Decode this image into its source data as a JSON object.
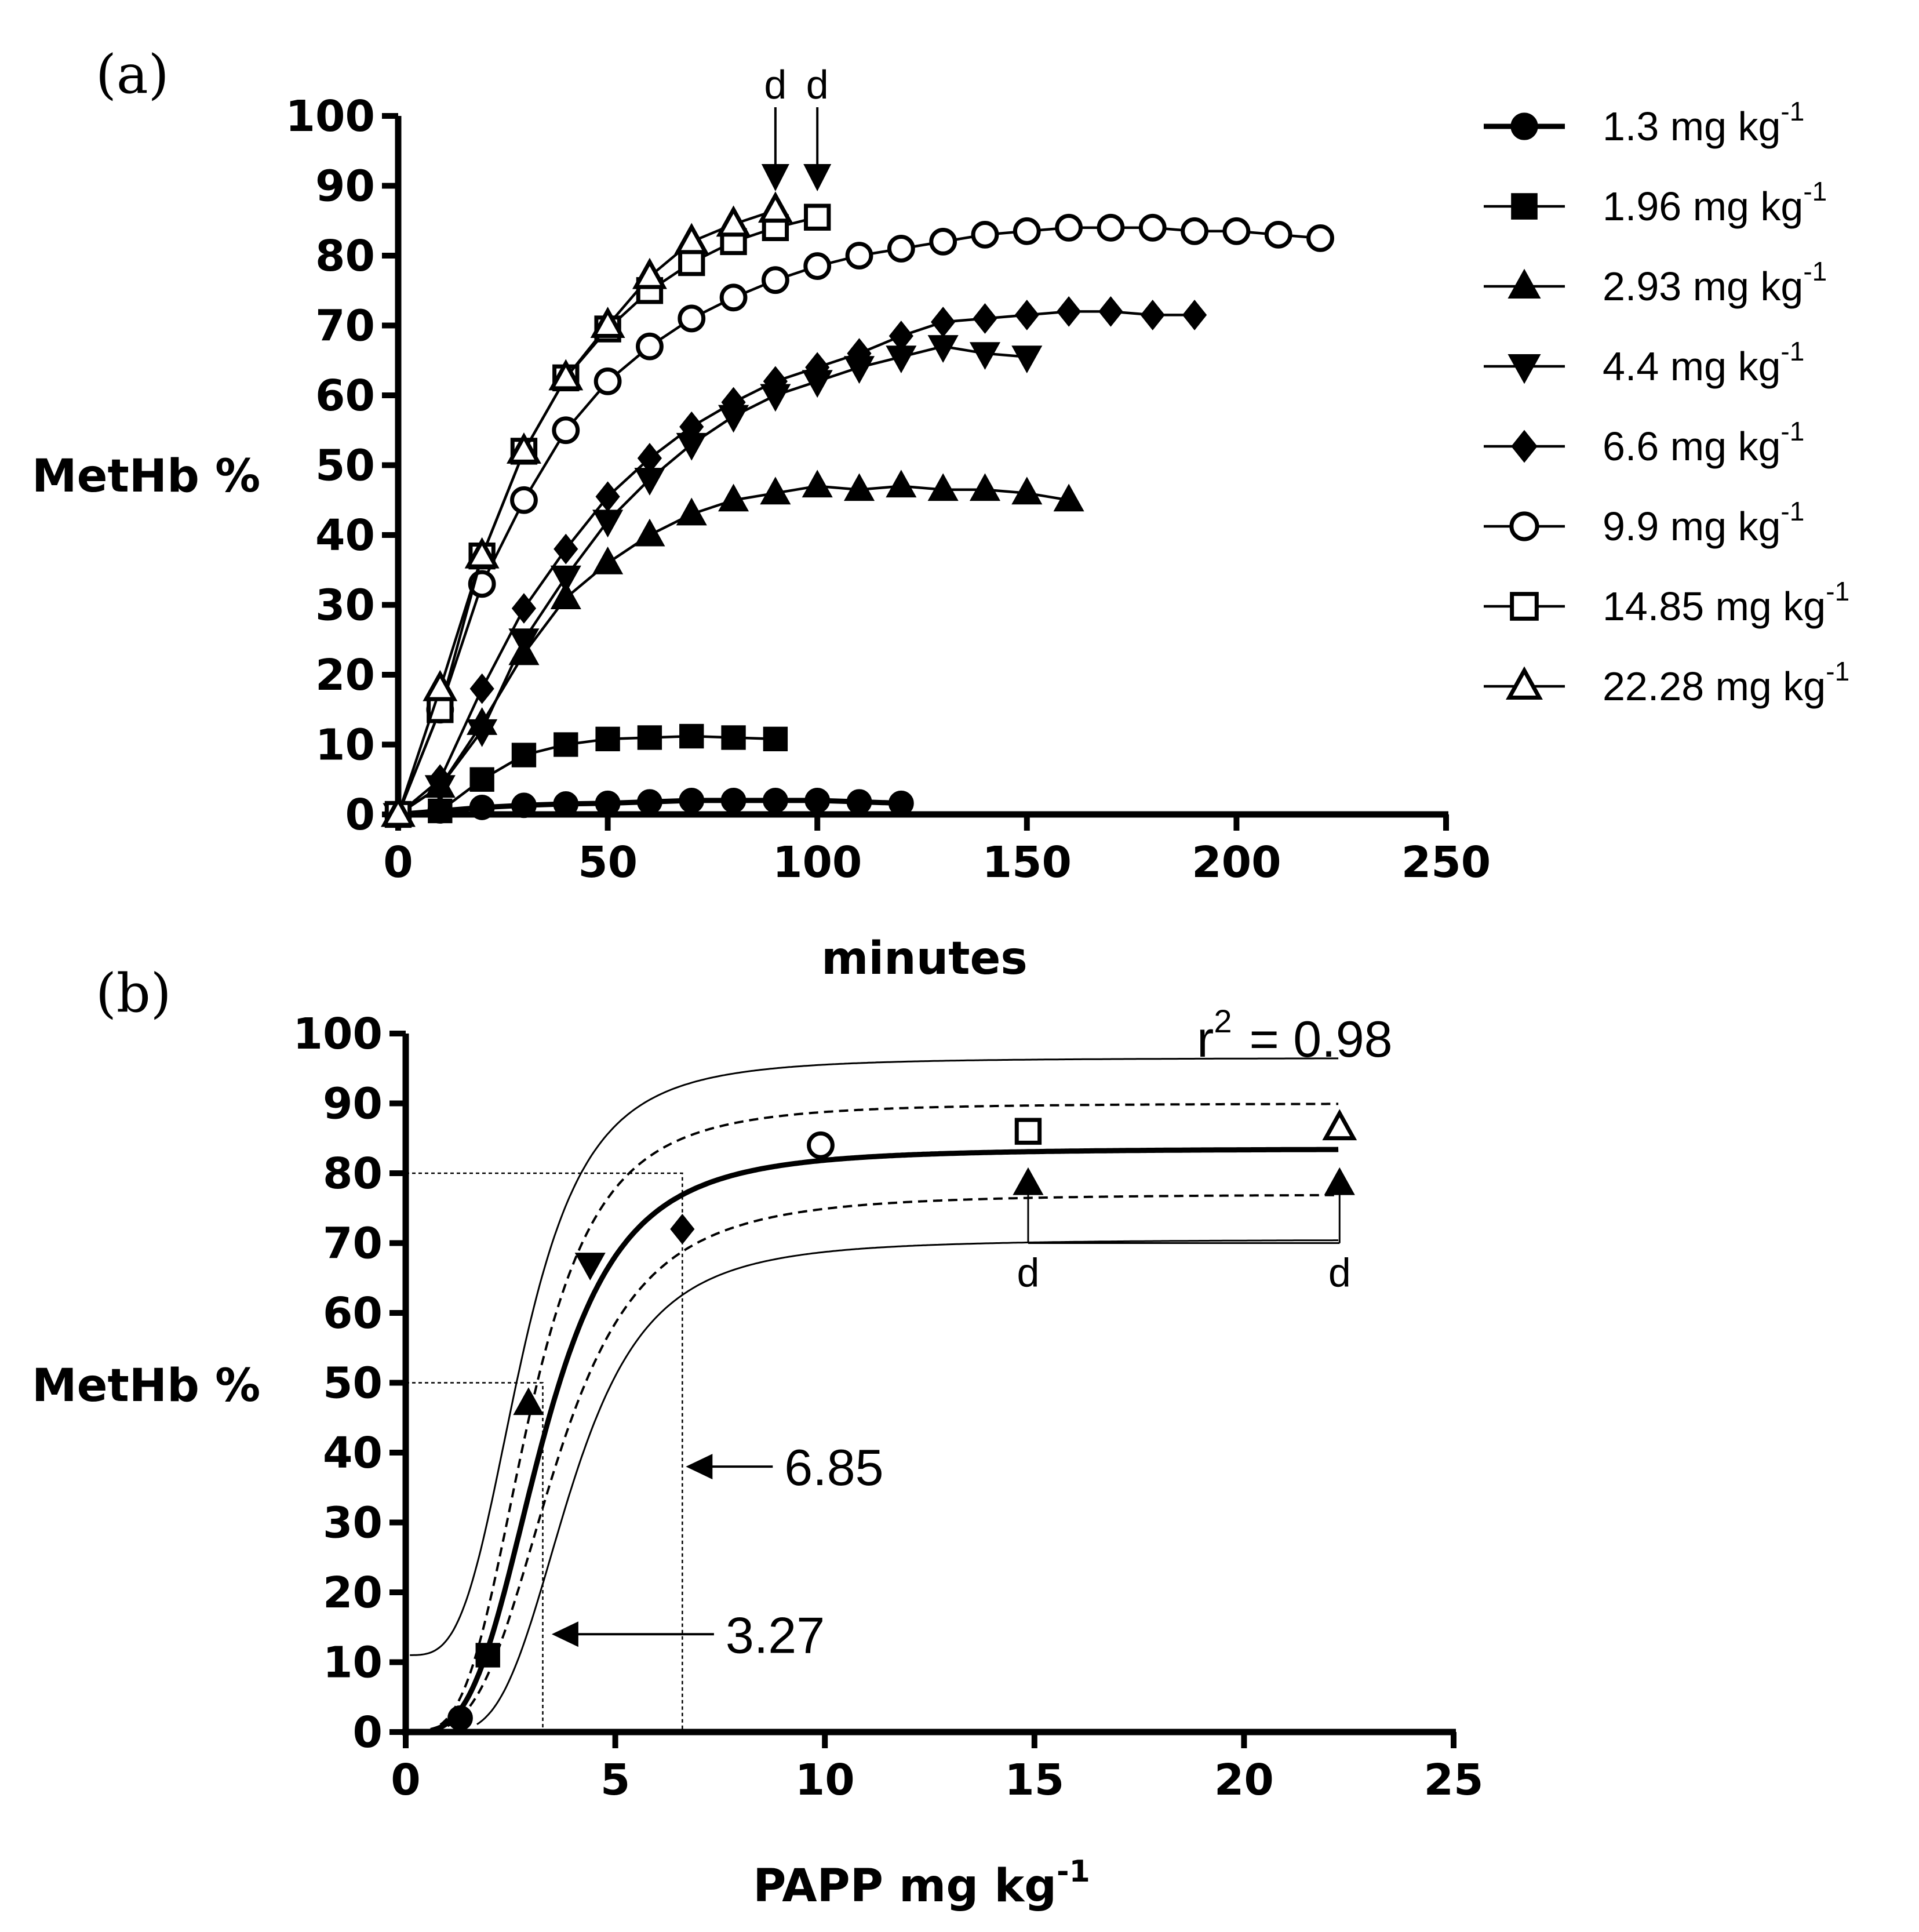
{
  "chart_data": [
    {
      "panel": "(a)",
      "type": "line",
      "xlabel": "minutes",
      "ylabel": "MetHb %",
      "xlim": [
        0,
        250
      ],
      "ylim": [
        0,
        100
      ],
      "xticks": [
        0,
        50,
        100,
        150,
        200,
        250
      ],
      "yticks": [
        0,
        10,
        20,
        30,
        40,
        50,
        60,
        70,
        80,
        90,
        100
      ],
      "legend_position": "right",
      "series": [
        {
          "name": "1.3 mg kg",
          "unit_sup": "-1",
          "marker": "circle",
          "fill": "filled",
          "line": "thick",
          "x": [
            0,
            10,
            20,
            30,
            40,
            50,
            60,
            70,
            80,
            90,
            100,
            110,
            120
          ],
          "y": [
            0,
            0.5,
            1,
            1.3,
            1.5,
            1.6,
            1.8,
            2,
            2,
            2,
            2,
            1.8,
            1.6
          ]
        },
        {
          "name": "1.96 mg kg",
          "unit_sup": "-1",
          "marker": "square",
          "fill": "filled",
          "line": "thin",
          "x": [
            0,
            10,
            20,
            30,
            40,
            50,
            60,
            70,
            80,
            90
          ],
          "y": [
            0,
            0.5,
            5,
            8.5,
            10,
            10.8,
            11,
            11.2,
            11,
            10.8
          ]
        },
        {
          "name": "2.93 mg kg",
          "unit_sup": "-1",
          "marker": "triangle-up",
          "fill": "filled",
          "line": "thin",
          "x": [
            0,
            10,
            20,
            30,
            40,
            50,
            60,
            70,
            80,
            90,
            100,
            110,
            120,
            130,
            140,
            150,
            160
          ],
          "y": [
            0,
            4,
            13,
            23,
            31,
            36,
            40,
            43,
            45,
            46,
            47,
            46.5,
            47,
            46.5,
            46.5,
            46,
            45
          ]
        },
        {
          "name": "4.4 mg kg",
          "unit_sup": "-1",
          "marker": "triangle-down",
          "fill": "filled",
          "line": "thin",
          "x": [
            0,
            10,
            20,
            30,
            40,
            50,
            60,
            70,
            80,
            90,
            100,
            110,
            120,
            130,
            140,
            150
          ],
          "y": [
            0,
            4,
            12,
            25,
            34,
            42,
            48,
            53,
            57,
            60,
            62,
            64,
            65.5,
            67,
            66,
            65.5
          ]
        },
        {
          "name": "6.6 mg kg",
          "unit_sup": "-1",
          "marker": "diamond",
          "fill": "filled",
          "line": "thin",
          "x": [
            0,
            10,
            20,
            30,
            40,
            50,
            60,
            70,
            80,
            90,
            100,
            110,
            120,
            130,
            140,
            150,
            160,
            170,
            180,
            190
          ],
          "y": [
            0,
            5,
            18,
            29.5,
            38,
            45.5,
            51,
            55.5,
            59,
            62,
            64,
            66,
            68.5,
            70.5,
            71,
            71.5,
            72,
            72,
            71.5,
            71.5
          ]
        },
        {
          "name": "9.9 mg kg",
          "unit_sup": "-1",
          "marker": "circle",
          "fill": "open",
          "line": "thin",
          "x": [
            0,
            10,
            20,
            30,
            40,
            50,
            60,
            70,
            80,
            90,
            100,
            110,
            120,
            130,
            140,
            150,
            160,
            170,
            180,
            190,
            200,
            210,
            220
          ],
          "y": [
            0,
            15,
            33,
            45,
            55,
            62,
            67,
            71,
            74,
            76.5,
            78.5,
            80,
            81,
            82,
            83,
            83.5,
            84,
            84,
            84,
            83.5,
            83.5,
            83,
            82.5
          ]
        },
        {
          "name": "14.85 mg kg",
          "unit_sup": "-1",
          "marker": "square",
          "fill": "open",
          "line": "thin",
          "x": [
            0,
            10,
            20,
            30,
            40,
            50,
            60,
            70,
            80,
            90,
            100
          ],
          "y": [
            0,
            15,
            37,
            52,
            62.5,
            69.5,
            75,
            79,
            82,
            84,
            85.5
          ]
        },
        {
          "name": "22.28 mg kg",
          "unit_sup": "-1",
          "marker": "triangle-up",
          "fill": "open",
          "line": "thin",
          "x": [
            0,
            10,
            20,
            30,
            40,
            50,
            60,
            70,
            80,
            90
          ],
          "y": [
            0,
            18,
            37,
            52,
            62.5,
            70,
            77,
            82,
            84.5,
            86.5
          ]
        }
      ],
      "annotations": [
        {
          "text": "d",
          "x": 90,
          "y": 90,
          "type": "arrow-down"
        },
        {
          "text": "d",
          "x": 100,
          "y": 90,
          "type": "arrow-down"
        }
      ]
    },
    {
      "panel": "(b)",
      "type": "scatter",
      "xlabel": "PAPP mg kg",
      "xlabel_sup": "-1",
      "ylabel": "MetHb %",
      "xlim": [
        0,
        25
      ],
      "ylim": [
        0,
        100
      ],
      "xticks": [
        0,
        5,
        10,
        15,
        20,
        25
      ],
      "yticks": [
        0,
        10,
        20,
        30,
        40,
        50,
        60,
        70,
        80,
        90,
        100
      ],
      "r2_text": "r",
      "r2_sup": "2",
      "r2_value": "= 0.98",
      "points": [
        {
          "x": 1.3,
          "y": 2,
          "marker": "circle",
          "fill": "filled"
        },
        {
          "x": 1.96,
          "y": 11,
          "marker": "square",
          "fill": "filled"
        },
        {
          "x": 2.93,
          "y": 47,
          "marker": "triangle-up",
          "fill": "filled"
        },
        {
          "x": 4.4,
          "y": 67,
          "marker": "triangle-down",
          "fill": "filled"
        },
        {
          "x": 6.6,
          "y": 72,
          "marker": "diamond",
          "fill": "filled"
        },
        {
          "x": 9.9,
          "y": 84,
          "marker": "circle",
          "fill": "open"
        },
        {
          "x": 14.85,
          "y": 86,
          "marker": "square",
          "fill": "open"
        },
        {
          "x": 22.28,
          "y": 86.5,
          "marker": "triangle-up",
          "fill": "open"
        }
      ],
      "death_points": [
        {
          "x": 14.85,
          "y": 78.5,
          "label": "d",
          "label_y": 70
        },
        {
          "x": 22.28,
          "y": 78.5,
          "label": "d",
          "label_y": 70
        }
      ],
      "fit": {
        "model": "sigmoid",
        "top": 83.5,
        "ec50": 3.27,
        "hill": 3.5
      },
      "bands": {
        "confidence_95": {
          "upper_offset": 6.5,
          "lower_offset": -6.5
        },
        "prediction_95": {
          "upper_top": 96.5,
          "upper_bottom": 11,
          "lower_top": 70.5,
          "lower_shift": 0.7
        }
      },
      "reference_lines": [
        {
          "y": 80,
          "x": 6.6
        },
        {
          "y": 50,
          "x": 3.27
        }
      ],
      "annotations": [
        {
          "text": "6.85",
          "x": 6.6,
          "y": 38
        },
        {
          "text": "3.27",
          "x": 3.4,
          "y": 14
        }
      ]
    }
  ]
}
